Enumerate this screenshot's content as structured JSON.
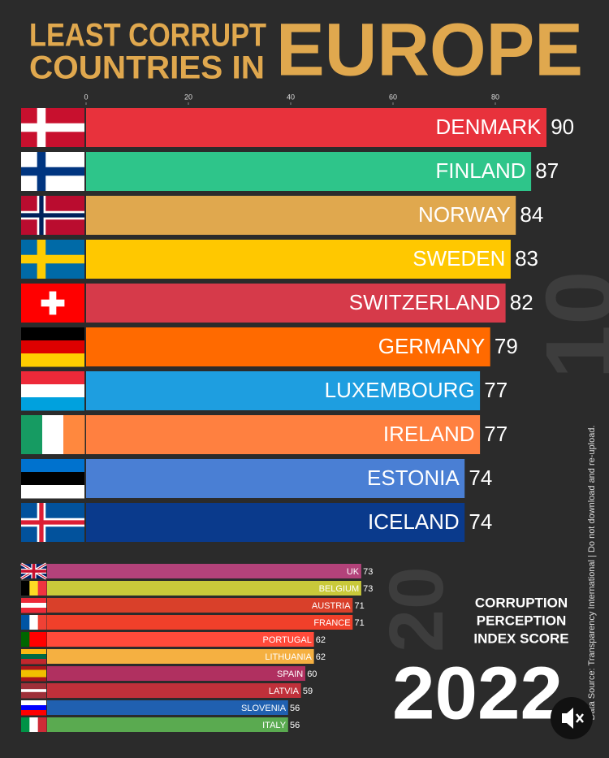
{
  "title_lines": [
    "LEAST CORRUPT",
    "COUNTRIES IN"
  ],
  "title_big": "EUROPE",
  "score_label": [
    "CORRUPTION",
    "PERCEPTION",
    "INDEX SCORE"
  ],
  "year": "2022",
  "source": "Data Source: Transparency International  |  Do not download and re-upload.",
  "background_ranks": [
    "10",
    "20"
  ],
  "chart_data": [
    {
      "type": "bar",
      "orientation": "horizontal",
      "categories": [
        "DENMARK",
        "FINLAND",
        "NORWAY",
        "SWEDEN",
        "SWITZERLAND",
        "GERMANY",
        "LUXEMBOURG",
        "IRELAND",
        "ESTONIA",
        "ICELAND"
      ],
      "values": [
        90,
        87,
        84,
        83,
        82,
        79,
        77,
        77,
        74,
        74
      ],
      "colors": [
        "#e8323c",
        "#2ec58a",
        "#e0a84e",
        "#ffc800",
        "#d63a4a",
        "#ff6a00",
        "#1e9ee0",
        "#ff8040",
        "#4a7fd4",
        "#0a3a8c"
      ],
      "xlim": [
        0,
        100
      ],
      "xticks": [
        0,
        20,
        40,
        60,
        80
      ]
    },
    {
      "type": "bar",
      "orientation": "horizontal",
      "categories": [
        "UK",
        "BELGIUM",
        "AUSTRIA",
        "FRANCE",
        "PORTUGAL",
        "LITHUANIA",
        "SPAIN",
        "LATVIA",
        "SLOVENIA",
        "ITALY"
      ],
      "values": [
        73,
        73,
        71,
        71,
        62,
        62,
        60,
        59,
        56,
        56
      ],
      "colors": [
        "#b3427a",
        "#c9c93a",
        "#d9402a",
        "#f0402a",
        "#ff4a3a",
        "#f5b041",
        "#b03060",
        "#c0303a",
        "#2060b0",
        "#5aaa50"
      ],
      "xlim": [
        0,
        100
      ]
    }
  ]
}
